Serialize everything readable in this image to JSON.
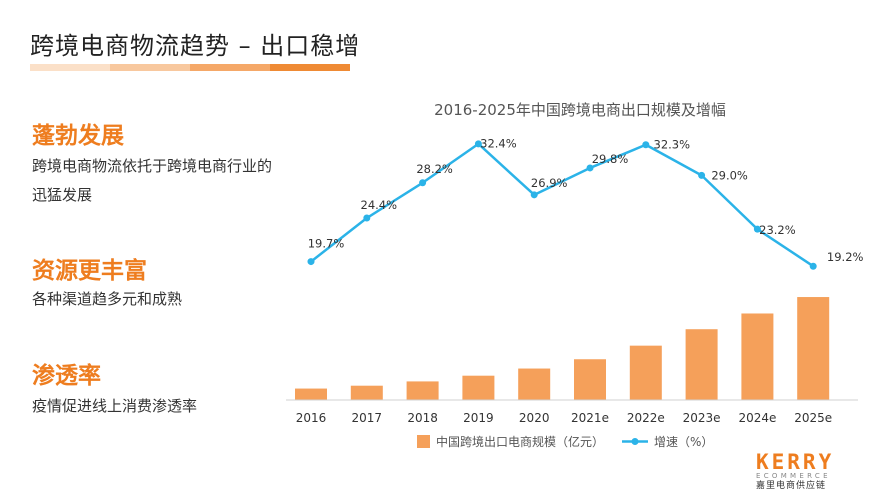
{
  "page": {
    "title": "跨境电商物流趋势 – 出口稳增",
    "sections": [
      {
        "heading": "蓬勃发展",
        "text": "跨境电商物流依托于跨境电商行业的迅猛发展"
      },
      {
        "heading": "资源更丰富",
        "text": "各种渠道趋多元和成熟"
      },
      {
        "heading": "渗透率",
        "text": "疫情促进线上消费渗透率"
      }
    ],
    "logo": {
      "main": "KERRY",
      "sub": "ECOMMERCE",
      "cn": "嘉里电商供应链"
    }
  },
  "colors": {
    "accent": "#ee7d1f",
    "bar": "#f5a05a",
    "line": "#2bb3e8",
    "bar_dark": "#e8641c"
  },
  "chart_data": {
    "type": "bar+line",
    "title": "2016-2025年中国跨境电商出口规模及增幅",
    "categories": [
      "2016",
      "2017",
      "2018",
      "2019",
      "2020",
      "2021e",
      "2022e",
      "2023e",
      "2024e",
      "2025e"
    ],
    "series": [
      {
        "name": "中国跨境出口电商规模（亿元）",
        "type": "bar",
        "values": [
          1.6,
          2.0,
          2.6,
          3.4,
          4.4,
          5.7,
          7.6,
          9.9,
          12.1,
          14.4
        ]
      },
      {
        "name": "增速（%）",
        "type": "line",
        "values": [
          19.7,
          24.4,
          28.2,
          32.4,
          26.9,
          29.8,
          32.3,
          29.0,
          23.2,
          19.2
        ],
        "labels": [
          "19.7%",
          "24.4%",
          "28.2%",
          "32.4%",
          "26.9%",
          "29.8%",
          "32.3%",
          "29.0%",
          "23.2%",
          "19.2%"
        ]
      }
    ],
    "legend": "bottom",
    "grid": false
  }
}
